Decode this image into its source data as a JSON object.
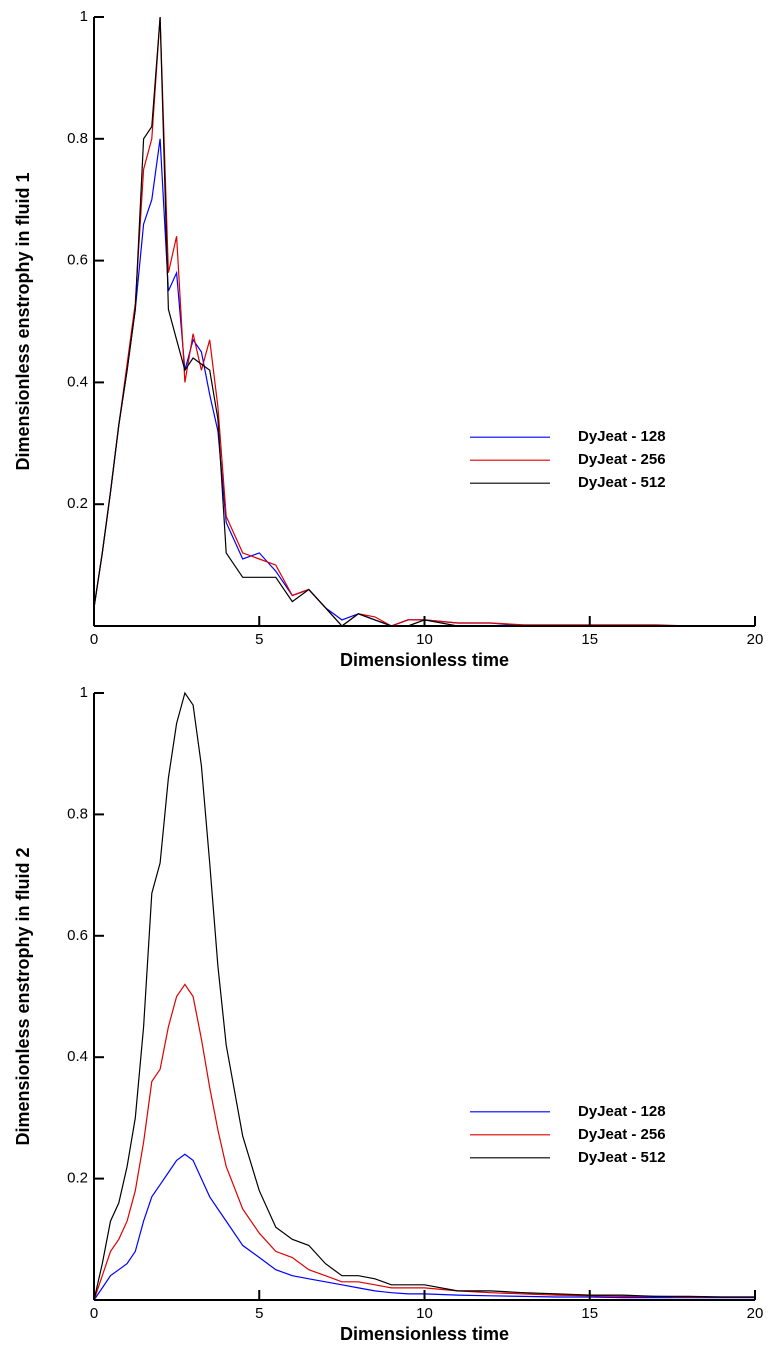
{
  "chart_data": [
    {
      "type": "line",
      "xlabel": "Dimensionless time",
      "ylabel": "Dimensionless enstrophy in fluid 1",
      "x": [
        0,
        0.25,
        0.5,
        0.75,
        1,
        1.25,
        1.5,
        1.75,
        2,
        2.25,
        2.5,
        2.75,
        3,
        3.25,
        3.5,
        3.75,
        4,
        4.5,
        5,
        5.5,
        6,
        6.5,
        7,
        7.5,
        8,
        8.5,
        9,
        9.5,
        10,
        11,
        12,
        13,
        14,
        15,
        16,
        17,
        18,
        19,
        20
      ],
      "series": [
        {
          "name": "DyJeat - 128",
          "color": "#0000ff",
          "values": [
            0.03,
            0.12,
            0.22,
            0.33,
            0.42,
            0.52,
            0.66,
            0.7,
            0.8,
            0.55,
            0.58,
            0.42,
            0.47,
            0.45,
            0.38,
            0.32,
            0.17,
            0.11,
            0.12,
            0.09,
            0.05,
            0.06,
            0.03,
            0.01,
            0.02,
            0.01,
            0,
            0.01,
            0.01,
            0.005,
            0.005,
            0,
            0,
            0,
            0,
            0,
            0,
            0,
            0
          ]
        },
        {
          "name": "DyJeat - 256",
          "color": "#dd0000",
          "values": [
            0.03,
            0.12,
            0.22,
            0.33,
            0.43,
            0.53,
            0.75,
            0.8,
            1.0,
            0.58,
            0.64,
            0.4,
            0.48,
            0.42,
            0.47,
            0.36,
            0.18,
            0.12,
            0.11,
            0.1,
            0.05,
            0.06,
            0.03,
            0,
            0.02,
            0.015,
            0,
            0.01,
            0.01,
            0.005,
            0.005,
            0.002,
            0.002,
            0.002,
            0.002,
            0.002,
            0,
            0,
            0
          ]
        },
        {
          "name": "DyJeat - 512",
          "color": "#000000",
          "values": [
            0.03,
            0.12,
            0.22,
            0.33,
            0.42,
            0.52,
            0.8,
            0.82,
            1.0,
            0.52,
            0.47,
            0.42,
            0.44,
            0.43,
            0.42,
            0.34,
            0.12,
            0.08,
            0.08,
            0.08,
            0.04,
            0.06,
            0.03,
            0,
            0.02,
            0.01,
            0,
            0,
            0.01,
            0,
            0,
            0,
            0,
            0,
            0,
            0,
            0,
            0,
            0
          ]
        }
      ],
      "xlim": [
        0,
        20
      ],
      "ylim": [
        0,
        1
      ],
      "xticks": [
        0,
        5,
        10,
        15,
        20
      ],
      "yticks": [
        0.2,
        0.4,
        0.6,
        0.8,
        1
      ],
      "legend": "right"
    },
    {
      "type": "line",
      "xlabel": "Dimensionless time",
      "ylabel": "Dimensionless enstrophy in fluid 2",
      "x": [
        0,
        0.25,
        0.5,
        0.75,
        1,
        1.25,
        1.5,
        1.75,
        2,
        2.25,
        2.5,
        2.75,
        3,
        3.25,
        3.5,
        3.75,
        4,
        4.5,
        5,
        5.5,
        6,
        6.5,
        7,
        7.5,
        8,
        8.5,
        9,
        9.5,
        10,
        11,
        12,
        13,
        14,
        15,
        16,
        17,
        18,
        19,
        20
      ],
      "series": [
        {
          "name": "DyJeat - 128",
          "color": "#0000ff",
          "values": [
            0,
            0.02,
            0.04,
            0.05,
            0.06,
            0.08,
            0.13,
            0.17,
            0.19,
            0.21,
            0.23,
            0.24,
            0.23,
            0.2,
            0.17,
            0.15,
            0.13,
            0.09,
            0.07,
            0.05,
            0.04,
            0.035,
            0.03,
            0.025,
            0.02,
            0.015,
            0.012,
            0.01,
            0.01,
            0.008,
            0.007,
            0.006,
            0.005,
            0.005,
            0.004,
            0.004,
            0.004,
            0.004,
            0.004
          ]
        },
        {
          "name": "DyJeat - 256",
          "color": "#dd0000",
          "values": [
            0,
            0.04,
            0.08,
            0.1,
            0.13,
            0.18,
            0.26,
            0.36,
            0.38,
            0.45,
            0.5,
            0.52,
            0.5,
            0.43,
            0.35,
            0.28,
            0.22,
            0.15,
            0.11,
            0.08,
            0.07,
            0.05,
            0.04,
            0.03,
            0.03,
            0.025,
            0.02,
            0.02,
            0.02,
            0.015,
            0.012,
            0.01,
            0.008,
            0.007,
            0.006,
            0.006,
            0.005,
            0.005,
            0.005
          ]
        },
        {
          "name": "DyJeat - 512",
          "color": "#000000",
          "values": [
            0,
            0.06,
            0.13,
            0.16,
            0.22,
            0.3,
            0.45,
            0.67,
            0.72,
            0.86,
            0.95,
            1.0,
            0.98,
            0.88,
            0.72,
            0.55,
            0.42,
            0.27,
            0.18,
            0.12,
            0.1,
            0.09,
            0.06,
            0.04,
            0.04,
            0.035,
            0.025,
            0.025,
            0.025,
            0.015,
            0.015,
            0.012,
            0.01,
            0.008,
            0.008,
            0.006,
            0.006,
            0.005,
            0.005
          ]
        }
      ],
      "xlim": [
        0,
        20
      ],
      "ylim": [
        0,
        1
      ],
      "xticks": [
        0,
        5,
        10,
        15,
        20
      ],
      "yticks": [
        0.2,
        0.4,
        0.6,
        0.8,
        1
      ],
      "legend": "right"
    }
  ]
}
